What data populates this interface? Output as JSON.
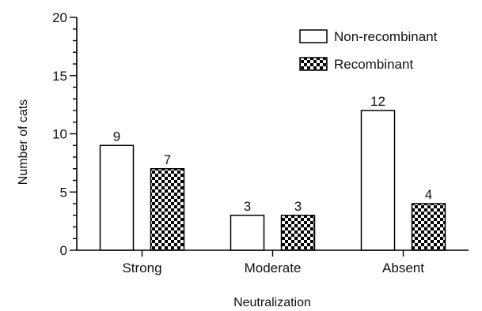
{
  "chart_data": {
    "type": "bar",
    "categories": [
      "Strong",
      "Moderate",
      "Absent"
    ],
    "series": [
      {
        "name": "Non-recombinant",
        "values": [
          9,
          3,
          12
        ],
        "pattern": "none",
        "fill": "#ffffff"
      },
      {
        "name": "Recombinant",
        "values": [
          7,
          3,
          4
        ],
        "pattern": "checkerboard",
        "fill": "#000000"
      }
    ],
    "xlabel": "Neutralization",
    "ylabel": "Number of cats",
    "ylim": [
      0,
      20
    ],
    "yticks": [
      0,
      5,
      10,
      15,
      20
    ],
    "minor_ticks_per_major": 5,
    "data_labels": true,
    "grid": false,
    "legend_position": "top-right"
  }
}
